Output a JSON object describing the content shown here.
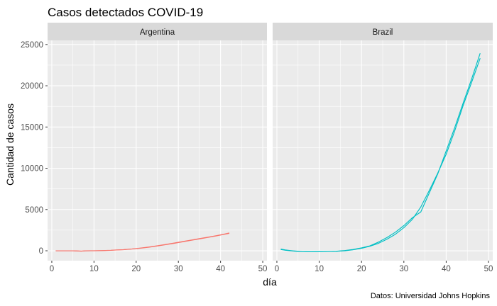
{
  "chart_data": {
    "type": "line",
    "title": "Casos detectados COVID-19",
    "xlabel": "día",
    "ylabel": "Cantidad de casos",
    "caption": "Datos: Universidad Johns Hopkins",
    "xlim": [
      -1,
      51
    ],
    "ylim": [
      -1200,
      25500
    ],
    "x_ticks": [
      0,
      10,
      20,
      30,
      40,
      50
    ],
    "x_tick_labels": [
      "0",
      "10",
      "20",
      "30",
      "40",
      "50"
    ],
    "y_ticks": [
      0,
      5000,
      10000,
      15000,
      20000,
      25000
    ],
    "y_tick_labels": [
      "0",
      "5000",
      "10000",
      "15000",
      "20000",
      "25000"
    ],
    "grid": true,
    "legend": "none",
    "panels": [
      {
        "label": "Argentina",
        "color": "#F8766D",
        "series": [
          {
            "x": [
              1,
              3,
              5,
              6,
              7,
              8,
              10,
              12,
              14,
              15,
              17,
              19,
              21,
              23,
              25,
              27,
              29,
              31,
              33,
              35,
              37,
              39,
              41,
              42
            ],
            "values": [
              0,
              0,
              0,
              -30,
              -50,
              -10,
              0,
              20,
              50,
              80,
              130,
              210,
              310,
              430,
              580,
              740,
              900,
              1080,
              1260,
              1440,
              1620,
              1800,
              2000,
              2100
            ]
          },
          {
            "x": [
              1,
              3,
              5,
              6,
              7,
              8,
              10,
              12,
              14,
              15,
              17,
              19,
              21,
              23,
              25,
              27,
              29,
              31,
              33,
              35,
              37,
              39,
              41,
              42
            ],
            "values": [
              0,
              0,
              0,
              -20,
              -40,
              0,
              10,
              30,
              60,
              90,
              140,
              220,
              330,
              460,
              610,
              770,
              940,
              1120,
              1300,
              1480,
              1650,
              1830,
              2040,
              2150
            ]
          }
        ]
      },
      {
        "label": "Brazil",
        "color": "#00BFC4",
        "series": [
          {
            "x": [
              1,
              2,
              4,
              6,
              8,
              10,
              12,
              14,
              16,
              18,
              20,
              22,
              24,
              26,
              28,
              30,
              32,
              34,
              36,
              38,
              40,
              42,
              44,
              46,
              48
            ],
            "values": [
              200,
              100,
              -20,
              -90,
              -110,
              -100,
              -80,
              -70,
              0,
              120,
              300,
              550,
              900,
              1400,
              2000,
              2800,
              3800,
              5300,
              7300,
              9400,
              11700,
              14500,
              17600,
              20400,
              23300
            ]
          },
          {
            "x": [
              1,
              2,
              4,
              6,
              8,
              10,
              12,
              14,
              16,
              18,
              20,
              22,
              24,
              26,
              28,
              30,
              32,
              34,
              36,
              38,
              40,
              42,
              44,
              46,
              48
            ],
            "values": [
              150,
              60,
              -40,
              -100,
              -120,
              -110,
              -90,
              -60,
              30,
              160,
              350,
              600,
              1050,
              1600,
              2250,
              3050,
              4000,
              4700,
              7000,
              9300,
              12100,
              14900,
              17900,
              20800,
              23900
            ]
          }
        ]
      }
    ]
  }
}
